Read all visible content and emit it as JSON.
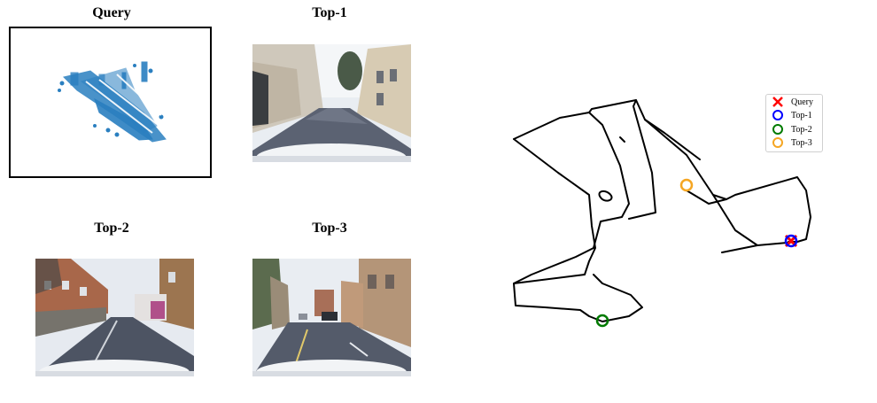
{
  "panels": {
    "query": {
      "title": "Query"
    },
    "top1": {
      "title": "Top-1"
    },
    "top2": {
      "title": "Top-2"
    },
    "top3": {
      "title": "Top-3"
    }
  },
  "legend": {
    "items": [
      {
        "label": "Query",
        "marker": "x",
        "color": "#ff0000"
      },
      {
        "label": "Top-1",
        "marker": "circle",
        "color": "#0000ff"
      },
      {
        "label": "Top-2",
        "marker": "circle",
        "color": "#007a00"
      },
      {
        "label": "Top-3",
        "marker": "circle",
        "color": "#f5a623"
      }
    ]
  },
  "colors": {
    "pointcloud": "#2a7fc0",
    "route": "#000000"
  }
}
